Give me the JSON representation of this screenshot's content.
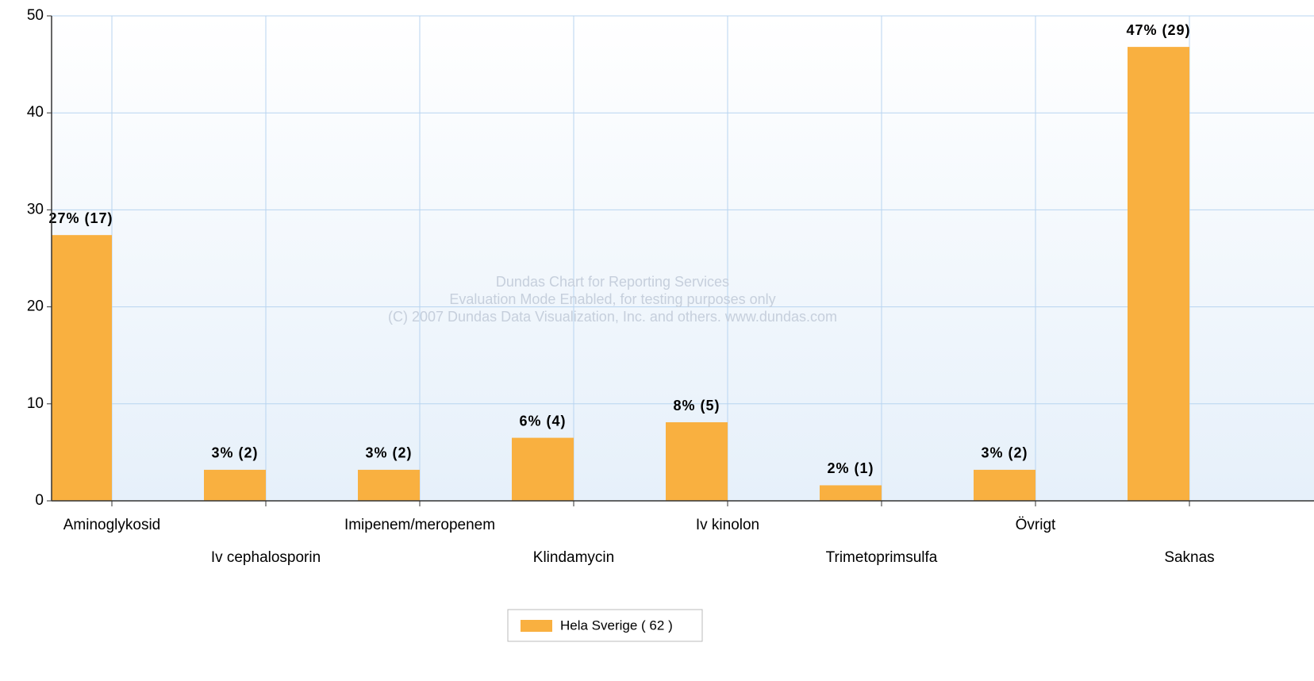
{
  "chart_data": {
    "type": "bar",
    "categories": [
      "Aminoglykosid",
      "Iv cephalosporin",
      "Imipenem/meropenem",
      "Klindamycin",
      "Iv kinolon",
      "Trimetoprimsulfa",
      "Övrigt",
      "Saknas"
    ],
    "series": [
      {
        "name": "Hela Sverige ( 62 )",
        "color": "#f9b040",
        "values": [
          27.4,
          3.2,
          3.2,
          6.5,
          8.1,
          1.6,
          3.2,
          46.8
        ],
        "value_labels": [
          "27% (17)",
          "3% (2)",
          "3% (2)",
          "6% (4)",
          "8% (5)",
          "2% (1)",
          "3% (2)",
          "47% (29)"
        ]
      }
    ],
    "ylim": [
      0,
      50
    ],
    "yticks": [
      0,
      10,
      20,
      30,
      40,
      50
    ],
    "grid": true,
    "watermark": [
      "Dundas Chart for Reporting Services",
      "Evaluation Mode Enabled, for testing purposes only",
      "(C) 2007 Dundas Data Visualization, Inc. and others. www.dundas.com"
    ]
  }
}
